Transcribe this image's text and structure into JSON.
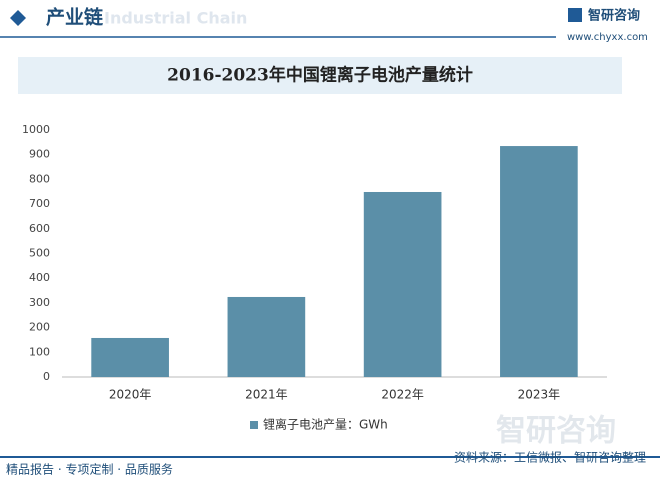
{
  "header": {
    "title": "产业链",
    "subtitle": "Industrial Chain",
    "brand": "智研咨询",
    "url": "www.chyxx.com"
  },
  "chart_data": {
    "type": "bar",
    "title": "2016-2023年中国锂离子电池产量统计",
    "categories": [
      "2020年",
      "2021年",
      "2022年",
      "2023年"
    ],
    "series": [
      {
        "name": "锂离子电池产量：GWh",
        "color": "#5b8fa8",
        "values": [
          158,
          324,
          749,
          935
        ]
      }
    ],
    "ylim": [
      0,
      1000
    ],
    "yticks": [
      0,
      100,
      200,
      300,
      400,
      500,
      600,
      700,
      800,
      900,
      1000
    ],
    "grid": false,
    "legend": "bottom"
  },
  "watermark": "智研咨询",
  "footer": {
    "left": "精品报告 · 专项定制 · 品质服务",
    "right": "资料来源：工信微报、智研咨询整理"
  }
}
